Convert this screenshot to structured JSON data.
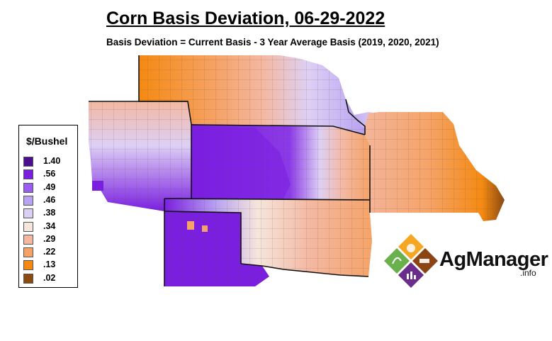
{
  "title": "Corn Basis Deviation, 06-29-2022",
  "subtitle": "Basis Deviation = Current Basis - 3 Year Average Basis (2019, 2020, 2021)",
  "legend": {
    "title": "$/Bushel",
    "items": [
      {
        "label": "1.40",
        "color": "#4a0e8f"
      },
      {
        "label": ".56",
        "color": "#7a1ee0"
      },
      {
        "label": ".49",
        "color": "#9b5cf0"
      },
      {
        "label": ".46",
        "color": "#b9a2f2"
      },
      {
        "label": ".38",
        "color": "#ddd0f5"
      },
      {
        "label": ".34",
        "color": "#f5e6dc"
      },
      {
        "label": ".29",
        "color": "#f4b8a2"
      },
      {
        "label": ".22",
        "color": "#f5a368"
      },
      {
        "label": ".13",
        "color": "#f58a12"
      },
      {
        "label": ".02",
        "color": "#8a4a10"
      }
    ]
  },
  "logo": {
    "name": "AgManager",
    "suffix": ".info"
  }
}
